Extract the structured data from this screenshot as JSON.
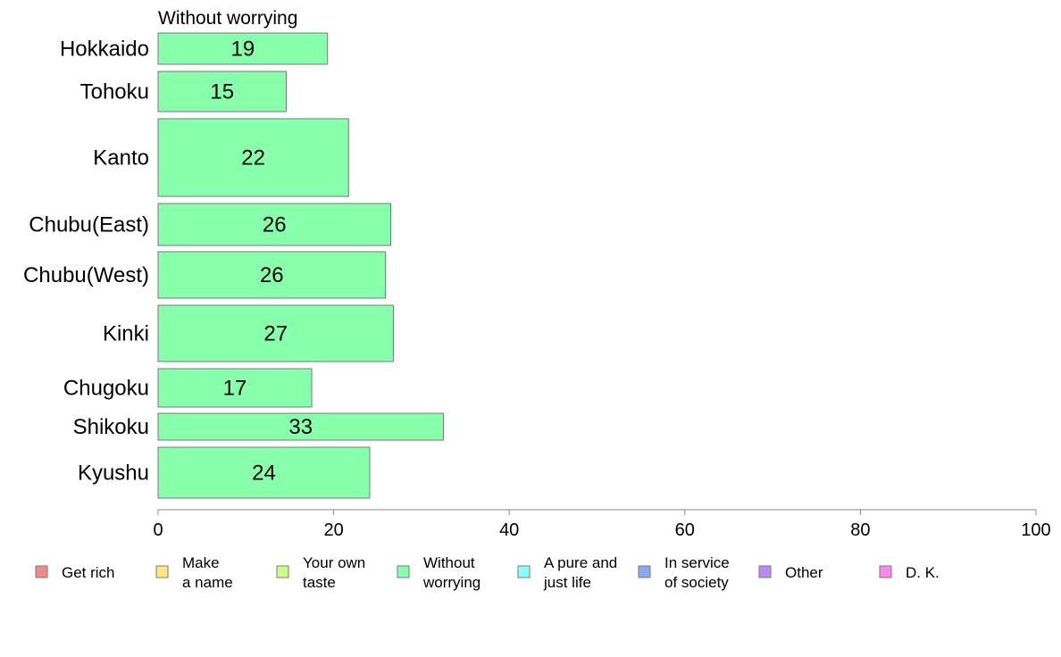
{
  "chart_data": {
    "type": "bar",
    "orientation": "horizontal",
    "title": "Without worrying",
    "categories": [
      "Hokkaido",
      "Tohoku",
      "Kanto",
      "Chubu(East)",
      "Chubu(West)",
      "Kinki",
      "Chugoku",
      "Shikoku",
      "Kyushu"
    ],
    "series": [
      {
        "name": "Without worrying",
        "color": "#88ffaa",
        "values": [
          19,
          15,
          22,
          26,
          26,
          27,
          17,
          33,
          24
        ],
        "bar_values": [
          19.3,
          14.6,
          21.7,
          26.5,
          25.9,
          26.8,
          17.5,
          32.5,
          24.1
        ]
      }
    ],
    "xlim": [
      0,
      100
    ],
    "xticks": [
      0,
      20,
      40,
      60,
      80,
      100
    ],
    "xlabel": "",
    "ylabel": "",
    "grid": false,
    "legend": {
      "placement": "bottom",
      "items": [
        {
          "lines": [
            "Get rich"
          ],
          "color": "#f28a8a"
        },
        {
          "lines": [
            "Make",
            "a name"
          ],
          "color": "#ffe680"
        },
        {
          "lines": [
            "Your own",
            "taste"
          ],
          "color": "#ccff88"
        },
        {
          "lines": [
            "Without",
            "worrying"
          ],
          "color": "#88ffaa"
        },
        {
          "lines": [
            "A pure and",
            "just life"
          ],
          "color": "#88ffff"
        },
        {
          "lines": [
            "In service",
            "of society"
          ],
          "color": "#88aaf2"
        },
        {
          "lines": [
            "Other"
          ],
          "color": "#bb88ff"
        },
        {
          "lines": [
            "D. K."
          ],
          "color": "#ff88ee"
        }
      ]
    }
  }
}
